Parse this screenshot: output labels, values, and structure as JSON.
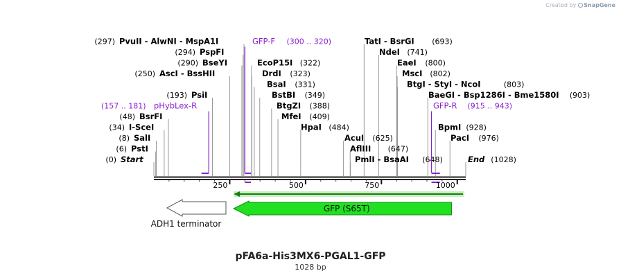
{
  "credit": {
    "prefix": "Created by",
    "brand": "SnapGene"
  },
  "plasmid": {
    "name": "pFA6a-His3MX6-PGAL1-GFP",
    "size_label": "1028 bp",
    "length": 1028
  },
  "colors": {
    "enzyme": "#000000",
    "primer": "#8b21cc",
    "gfp_fill": "#21e021",
    "gfp_stroke": "#0b8a0b",
    "arrow_stroke": "#555555",
    "highlight": "#c8efc0"
  },
  "ruler": {
    "ticks": [
      {
        "pos": 250,
        "label": "250"
      },
      {
        "pos": 500,
        "label": "500"
      },
      {
        "pos": 750,
        "label": "750"
      },
      {
        "pos": 1000,
        "label": "1000"
      }
    ]
  },
  "enzymes": [
    {
      "pos": 0,
      "name": "Start",
      "num": "(0)",
      "italic": true
    },
    {
      "pos": 6,
      "name": "PstI",
      "num": "(6)"
    },
    {
      "pos": 8,
      "name": "SalI",
      "num": "(8)"
    },
    {
      "pos": 34,
      "name": "I-SceI",
      "num": "(34)"
    },
    {
      "pos": 48,
      "name": "BsrFI",
      "num": "(48)"
    },
    {
      "pos": 193,
      "name": "PsiI",
      "num": "(193)"
    },
    {
      "pos": 250,
      "name": "AscI - BssHII",
      "num": "(250)"
    },
    {
      "pos": 290,
      "name": "BseYI",
      "num": "(290)"
    },
    {
      "pos": 294,
      "name": "PspFI",
      "num": "(294)"
    },
    {
      "pos": 297,
      "name": "PvuII - AlwNI - MspA1I",
      "num": "(297)"
    },
    {
      "pos": 322,
      "name": "EcoP15I",
      "num": "(322)"
    },
    {
      "pos": 323,
      "name": "DrdI",
      "num": "(323)"
    },
    {
      "pos": 331,
      "name": "BsaI",
      "num": "(331)"
    },
    {
      "pos": 349,
      "name": "BstBI",
      "num": "(349)"
    },
    {
      "pos": 388,
      "name": "BtgZI",
      "num": "(388)"
    },
    {
      "pos": 409,
      "name": "MfeI",
      "num": "(409)"
    },
    {
      "pos": 484,
      "name": "HpaI",
      "num": "(484)"
    },
    {
      "pos": 625,
      "name": "AcuI",
      "num": "(625)"
    },
    {
      "pos": 647,
      "name": "AflIII",
      "num": "(647)"
    },
    {
      "pos": 648,
      "name": "PmlI - BsaAI",
      "num": "(648)"
    },
    {
      "pos": 693,
      "name": "TatI - BsrGI",
      "num": "(693)"
    },
    {
      "pos": 741,
      "name": "NdeI",
      "num": "(741)"
    },
    {
      "pos": 800,
      "name": "EaeI",
      "num": "(800)"
    },
    {
      "pos": 802,
      "name": "MscI",
      "num": "(802)"
    },
    {
      "pos": 803,
      "name": "BtgI - StyI - NcoI",
      "num": "(803)"
    },
    {
      "pos": 903,
      "name": "BaeGI - Bsp1286I - Bme1580I",
      "num": "(903)"
    },
    {
      "pos": 928,
      "name": "BpmI",
      "num": "(928)"
    },
    {
      "pos": 976,
      "name": "PacI",
      "num": "(976)"
    },
    {
      "pos": 1028,
      "name": "End",
      "num": "(1028)",
      "italic": true
    }
  ],
  "primers": [
    {
      "name": "pHybLex-R",
      "range": "(157 .. 181)",
      "start": 157,
      "end": 181
    },
    {
      "name": "GFP-F",
      "range": "(300 .. 320)",
      "start": 300,
      "end": 320
    },
    {
      "name": "GFP-R",
      "range": "(915 .. 943)",
      "start": 915,
      "end": 943
    }
  ],
  "features": [
    {
      "name": "GFP (S65T)",
      "start": 263,
      "end": 981,
      "type": "gfp"
    },
    {
      "name": "ADH1 terminator",
      "start": 40,
      "end": 240,
      "type": "terminator"
    }
  ],
  "orf": {
    "start": 263,
    "end": 1028
  }
}
